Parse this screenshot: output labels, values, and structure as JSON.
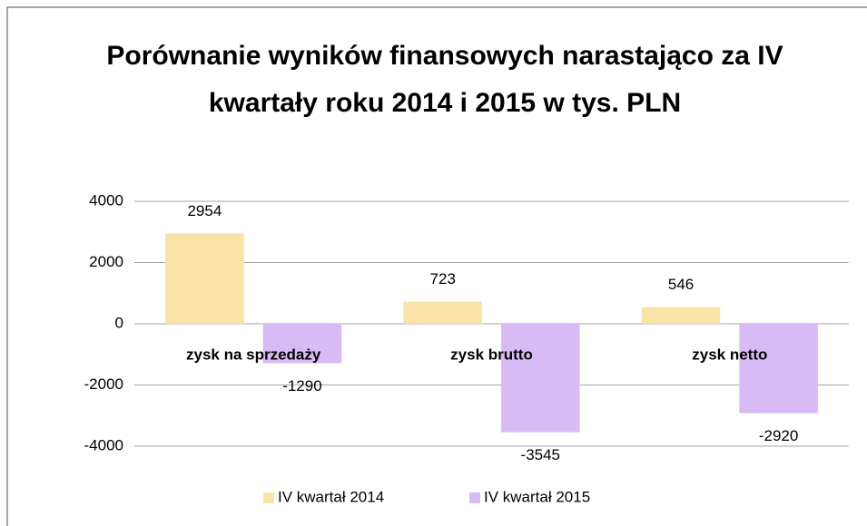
{
  "chart_data": {
    "type": "bar",
    "title": "Porównanie wyników finansowych narastająco za IV kwartały roku 2014 i 2015 w tys. PLN",
    "categories": [
      "zysk na sprzedaży",
      "zysk brutto",
      "zysk netto"
    ],
    "series": [
      {
        "name": "IV kwartał 2014",
        "color": "#fae3a8",
        "values": [
          2954,
          723,
          546
        ]
      },
      {
        "name": "IV kwartał 2015",
        "color": "#d8bbf4",
        "values": [
          -1290,
          -3545,
          -2920
        ]
      }
    ],
    "ylim": [
      -4000,
      4000
    ],
    "yticks": [
      -4000,
      -2000,
      0,
      2000,
      4000
    ],
    "grid": true,
    "legend": "bottom"
  }
}
